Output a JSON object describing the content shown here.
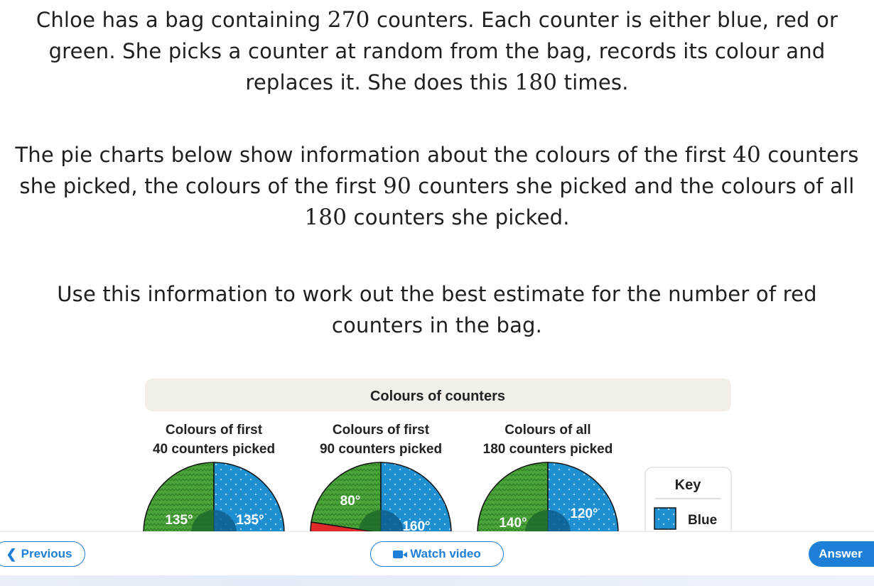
{
  "question": {
    "p1_parts": [
      "Chloe has a bag containing ",
      "270",
      " counters. Each counter is either blue, red or green. She picks a counter at random from the bag, records its colour and replaces it. She does this ",
      "180",
      " times."
    ],
    "p2_parts": [
      "The pie charts below show information about the colours of the first ",
      "40",
      " counters she picked, the colours of the first ",
      "90",
      " counters she picked and the colours of all ",
      "180",
      " counters she picked."
    ],
    "p3": "Use this information to work out the best estimate for the number of red counters in the bag."
  },
  "figure": {
    "title": "Colours of counters",
    "key_title": "Key",
    "key_items": [
      {
        "label": "Blue",
        "color": "#1e8fd0"
      }
    ]
  },
  "chart_data": [
    {
      "type": "pie",
      "title": "Colours of first 40 counters picked",
      "title_lines": [
        "Colours of first",
        "40 counters picked"
      ],
      "slices": [
        {
          "name": "Green",
          "degrees": 135,
          "label": "135°",
          "color": "#4aa43a"
        },
        {
          "name": "Blue",
          "degrees": 135,
          "label": "135°",
          "color": "#1e8fd0"
        }
      ]
    },
    {
      "type": "pie",
      "title": "Colours of first 90 counters picked",
      "title_lines": [
        "Colours of first",
        "90 counters picked"
      ],
      "slices": [
        {
          "name": "Green",
          "degrees": 80,
          "label": "80°",
          "color": "#4aa43a"
        },
        {
          "name": "Blue",
          "degrees": 160,
          "label": "160°",
          "color": "#1e8fd0"
        },
        {
          "name": "Red",
          "color": "#e32a2a"
        }
      ]
    },
    {
      "type": "pie",
      "title": "Colours of all 180 counters picked",
      "title_lines": [
        "Colours of all",
        "180 counters picked"
      ],
      "slices": [
        {
          "name": "Green",
          "degrees": 140,
          "label": "140°",
          "color": "#4aa43a"
        },
        {
          "name": "Blue",
          "degrees": 120,
          "label": "120°",
          "color": "#1e8fd0"
        }
      ]
    }
  ],
  "nav": {
    "prev_label": "Previous",
    "video_label": "Watch video",
    "answer_label": "Answer"
  },
  "colors": {
    "accent": "#1e7fd6",
    "blue": "#1e8fd0",
    "green": "#4aa43a",
    "red": "#e32a2a",
    "title_band": "#f1efe8"
  }
}
